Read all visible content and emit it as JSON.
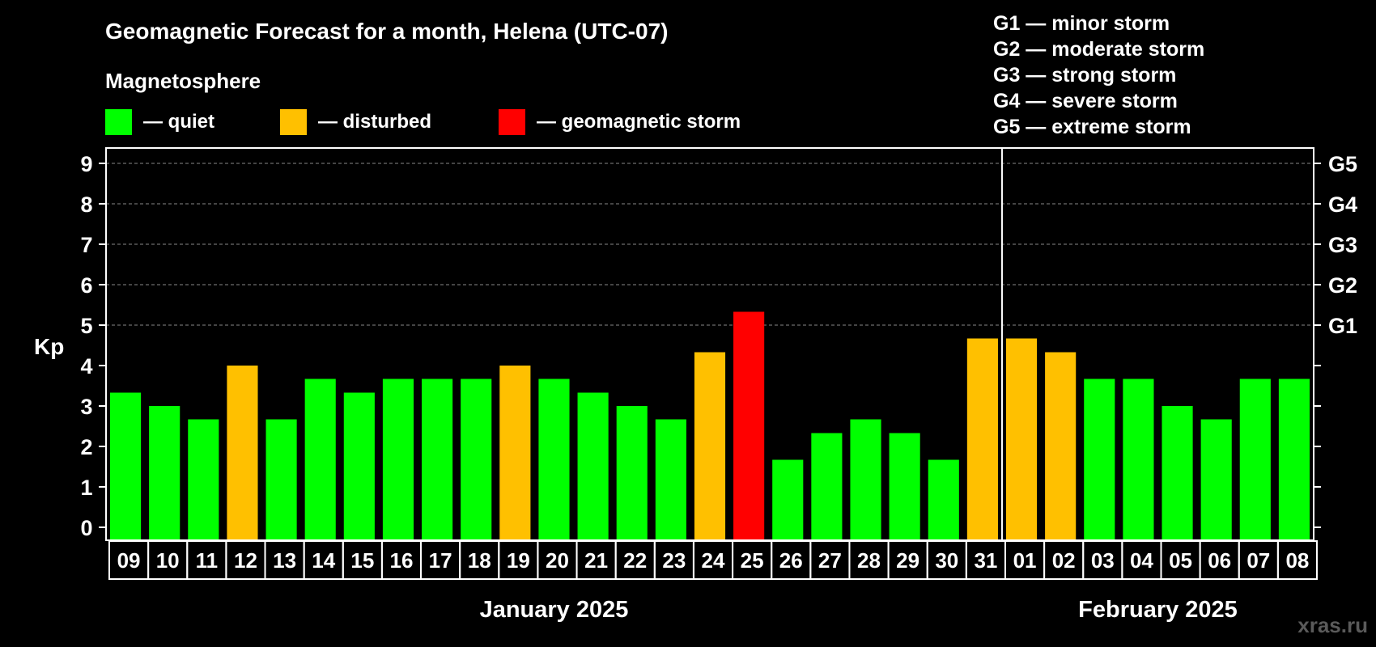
{
  "header": {
    "title": "Geomagnetic Forecast for a month, Helena (UTC-07)",
    "section": "Magnetosphere"
  },
  "legend": [
    {
      "label": "— quiet",
      "color": "#00ff00"
    },
    {
      "label": "— disturbed",
      "color": "#ffc000"
    },
    {
      "label": "— geomagnetic storm",
      "color": "#ff0000"
    }
  ],
  "storm_scale": [
    "G1 — minor storm",
    "G2 — moderate storm",
    "G3 — strong storm",
    "G4 — severe storm",
    "G5 — extreme storm"
  ],
  "watermark": "xras.ru",
  "chart_data": {
    "type": "bar",
    "title": "Geomagnetic Forecast for a month, Helena (UTC-07)",
    "ylabel": "Kp",
    "ylim": [
      0,
      9
    ],
    "yticks": [
      "0",
      "1",
      "2",
      "3",
      "4",
      "5",
      "6",
      "7",
      "8",
      "9"
    ],
    "right_ticks": [
      {
        "value": 5,
        "label": "G1"
      },
      {
        "value": 6,
        "label": "G2"
      },
      {
        "value": 7,
        "label": "G3"
      },
      {
        "value": 8,
        "label": "G4"
      },
      {
        "value": 9,
        "label": "G5"
      }
    ],
    "grid": true,
    "categories": [
      "09",
      "10",
      "11",
      "12",
      "13",
      "14",
      "15",
      "16",
      "17",
      "18",
      "19",
      "20",
      "21",
      "22",
      "23",
      "24",
      "25",
      "26",
      "27",
      "28",
      "29",
      "30",
      "31",
      "01",
      "02",
      "03",
      "04",
      "05",
      "06",
      "07",
      "08"
    ],
    "values": [
      3.33,
      3.0,
      2.67,
      4.0,
      2.67,
      3.67,
      3.33,
      3.67,
      3.67,
      3.67,
      4.0,
      3.67,
      3.33,
      3.0,
      2.67,
      4.33,
      5.33,
      1.67,
      2.33,
      2.67,
      2.33,
      1.67,
      4.67,
      4.67,
      4.33,
      3.67,
      3.67,
      3.0,
      2.67,
      3.67,
      3.67
    ],
    "status": [
      "quiet",
      "quiet",
      "quiet",
      "disturbed",
      "quiet",
      "quiet",
      "quiet",
      "quiet",
      "quiet",
      "quiet",
      "disturbed",
      "quiet",
      "quiet",
      "quiet",
      "quiet",
      "disturbed",
      "storm",
      "quiet",
      "quiet",
      "quiet",
      "quiet",
      "quiet",
      "disturbed",
      "disturbed",
      "disturbed",
      "quiet",
      "quiet",
      "quiet",
      "quiet",
      "quiet",
      "quiet"
    ],
    "status_colors": {
      "quiet": "#00ff00",
      "disturbed": "#ffc000",
      "storm": "#ff0000"
    },
    "months": [
      {
        "label": "January 2025",
        "first": 0,
        "last": 22
      },
      {
        "label": "February 2025",
        "first": 23,
        "last": 30
      }
    ],
    "month_divider_after_index": 22
  }
}
